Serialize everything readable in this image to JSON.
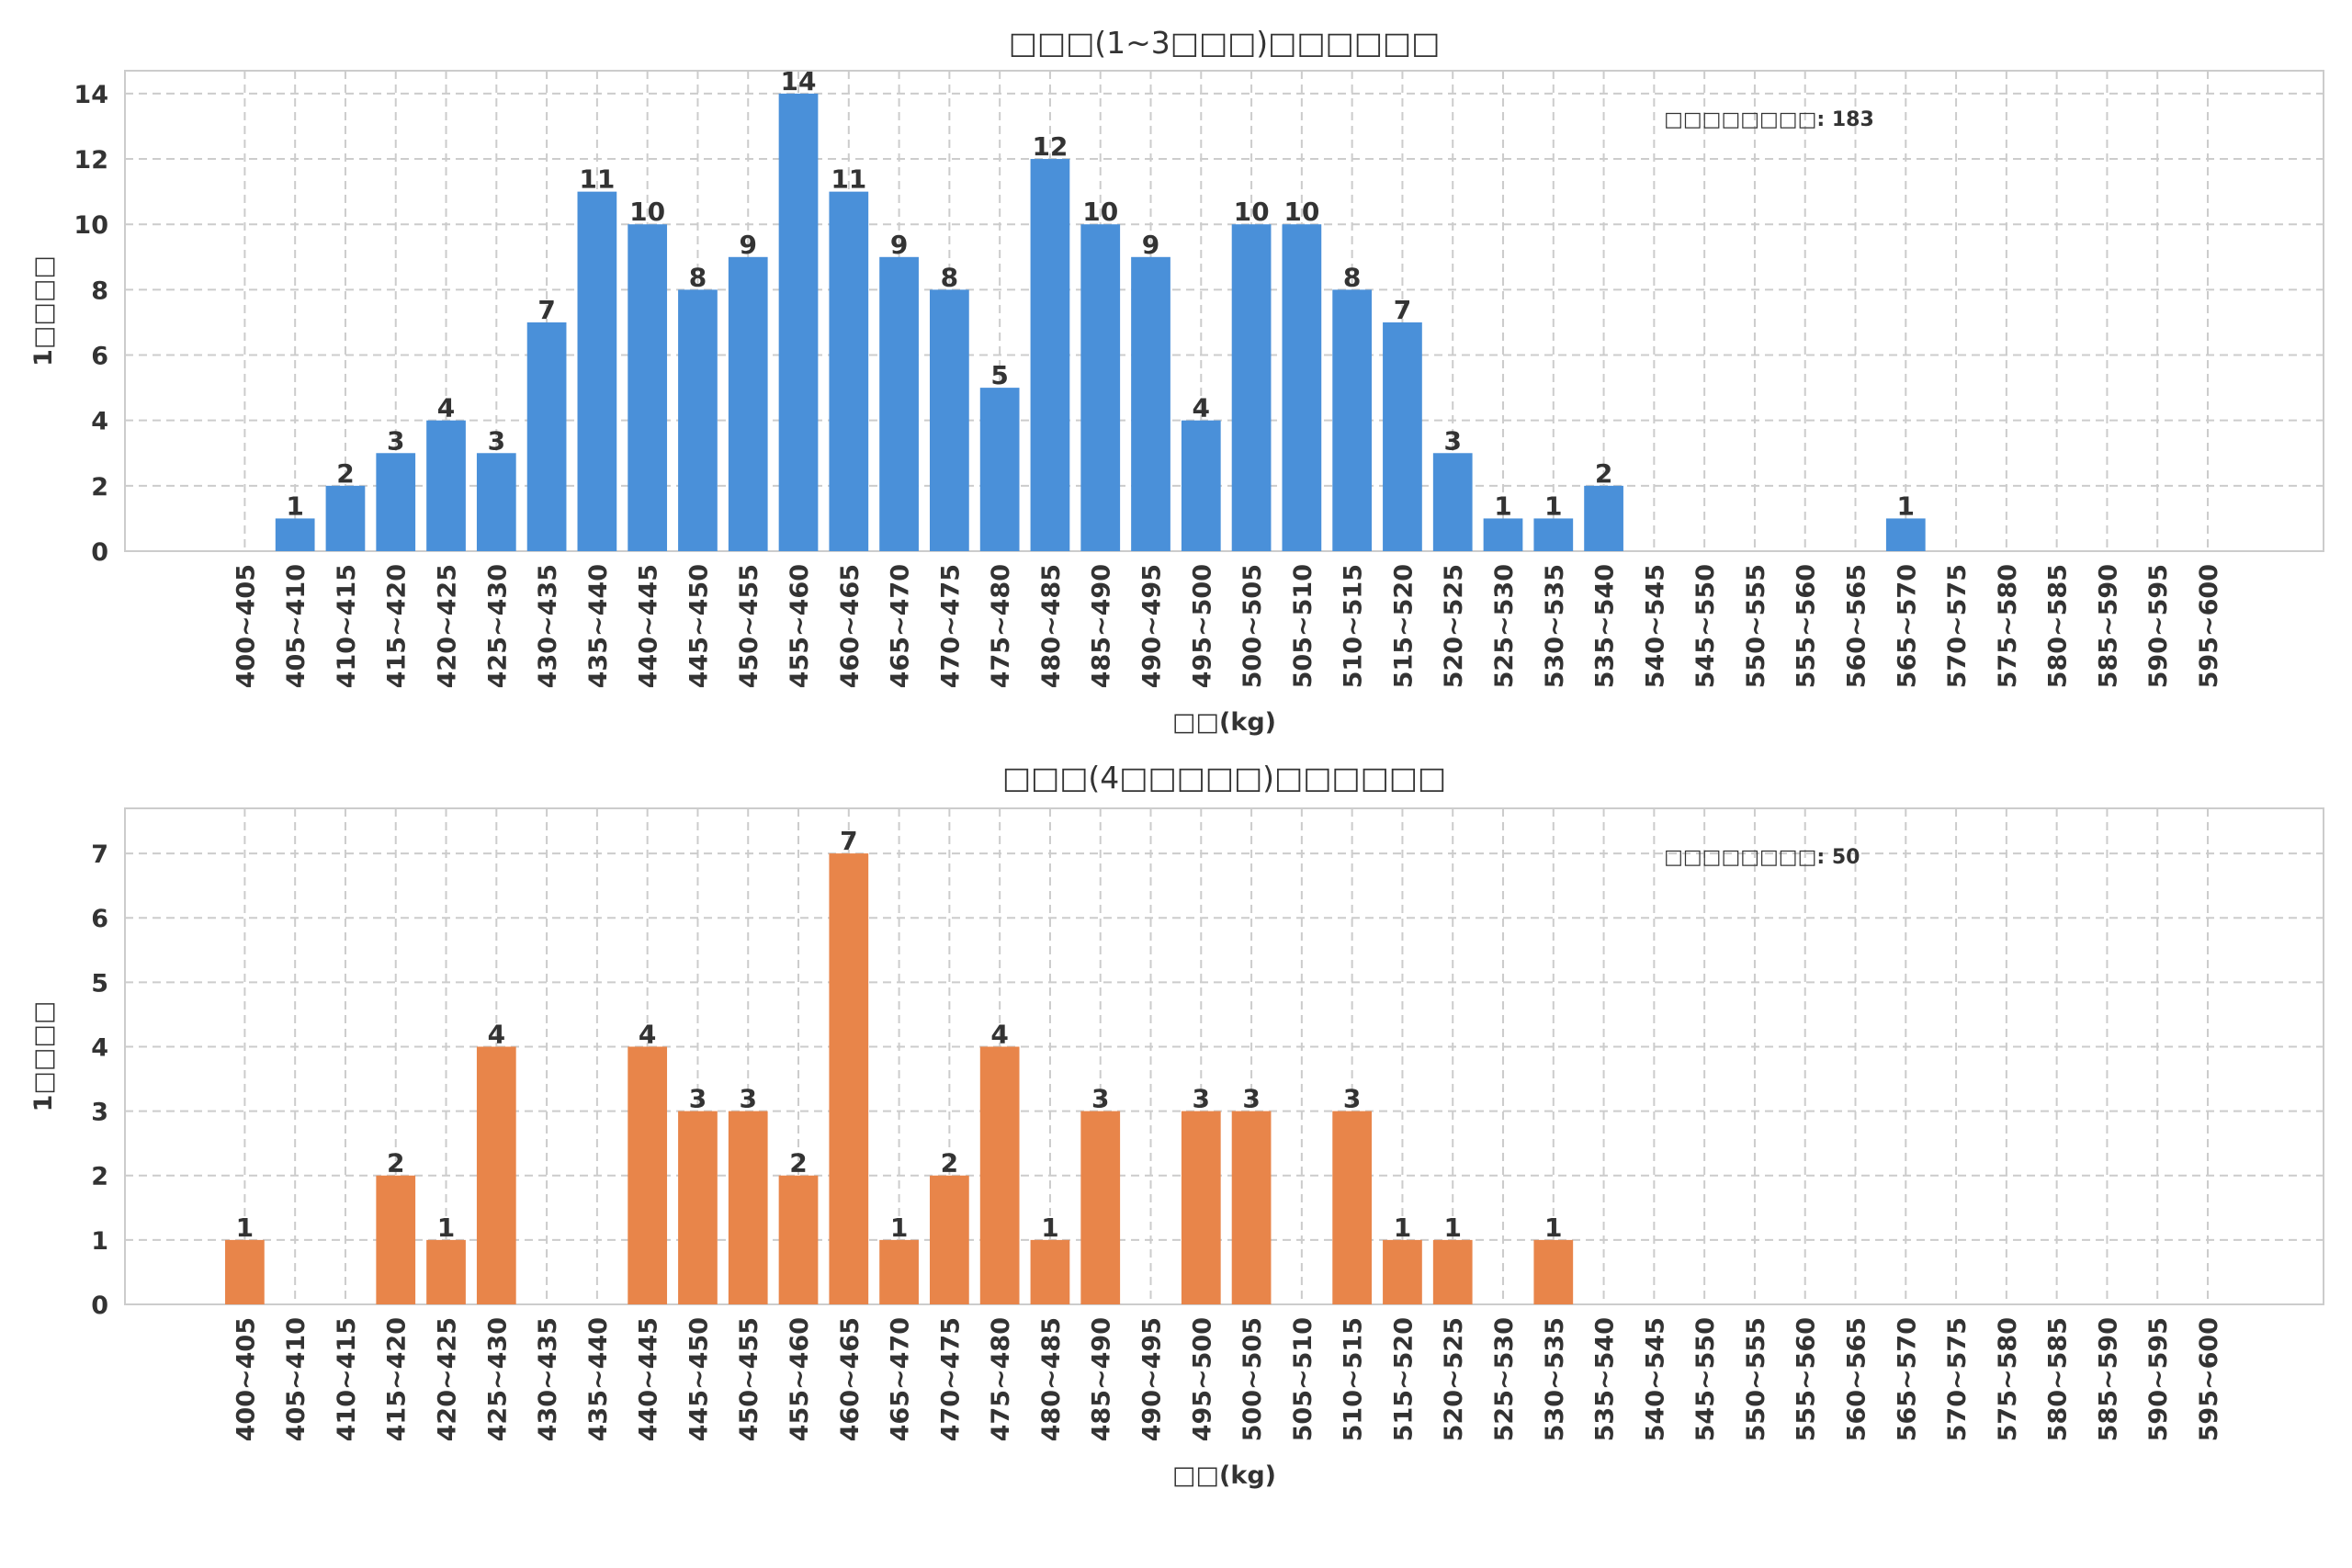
{
  "chart_data": [
    {
      "type": "bar",
      "title": "□□□(1~3□□□)□□□□□□",
      "xlabel": "□□(kg)",
      "ylabel": "1□□□□",
      "annotation": "□□□□□□□□: 183",
      "color": "#4a90d9",
      "ylim": [
        0,
        14.7
      ],
      "yticks": [
        0,
        2,
        4,
        6,
        8,
        10,
        12,
        14
      ],
      "grid": true,
      "categories": [
        "400~405",
        "405~410",
        "410~415",
        "415~420",
        "420~425",
        "425~430",
        "430~435",
        "435~440",
        "440~445",
        "445~450",
        "450~455",
        "455~460",
        "460~465",
        "465~470",
        "470~475",
        "475~480",
        "480~485",
        "485~490",
        "490~495",
        "495~500",
        "500~505",
        "505~510",
        "510~515",
        "515~520",
        "520~525",
        "525~530",
        "530~535",
        "535~540",
        "540~545",
        "545~550",
        "550~555",
        "555~560",
        "560~565",
        "565~570",
        "570~575",
        "575~580",
        "580~585",
        "585~590",
        "590~595",
        "595~600"
      ],
      "values": [
        0,
        1,
        2,
        3,
        4,
        3,
        7,
        11,
        10,
        8,
        9,
        14,
        11,
        9,
        8,
        5,
        12,
        10,
        9,
        4,
        10,
        10,
        8,
        7,
        3,
        1,
        1,
        2,
        0,
        0,
        0,
        0,
        0,
        1,
        0,
        0,
        0,
        0,
        0,
        0
      ]
    },
    {
      "type": "bar",
      "title": "□□□(4□□□□□)□□□□□□",
      "xlabel": "□□(kg)",
      "ylabel": "1□□□□",
      "annotation": "□□□□□□□□: 50",
      "color": "#e8854a",
      "ylim": [
        0,
        7.7
      ],
      "yticks": [
        0,
        1,
        2,
        3,
        4,
        5,
        6,
        7
      ],
      "grid": true,
      "categories": [
        "400~405",
        "405~410",
        "410~415",
        "415~420",
        "420~425",
        "425~430",
        "430~435",
        "435~440",
        "440~445",
        "445~450",
        "450~455",
        "455~460",
        "460~465",
        "465~470",
        "470~475",
        "475~480",
        "480~485",
        "485~490",
        "490~495",
        "495~500",
        "500~505",
        "505~510",
        "510~515",
        "515~520",
        "520~525",
        "525~530",
        "530~535",
        "535~540",
        "540~545",
        "545~550",
        "550~555",
        "555~560",
        "560~565",
        "565~570",
        "570~575",
        "575~580",
        "580~585",
        "585~590",
        "590~595",
        "595~600"
      ],
      "values": [
        1,
        0,
        0,
        2,
        1,
        4,
        0,
        0,
        4,
        3,
        3,
        2,
        7,
        1,
        2,
        4,
        1,
        3,
        0,
        3,
        3,
        0,
        3,
        1,
        1,
        0,
        1,
        0,
        0,
        0,
        0,
        0,
        0,
        0,
        0,
        0,
        0,
        0,
        0,
        0
      ]
    }
  ]
}
